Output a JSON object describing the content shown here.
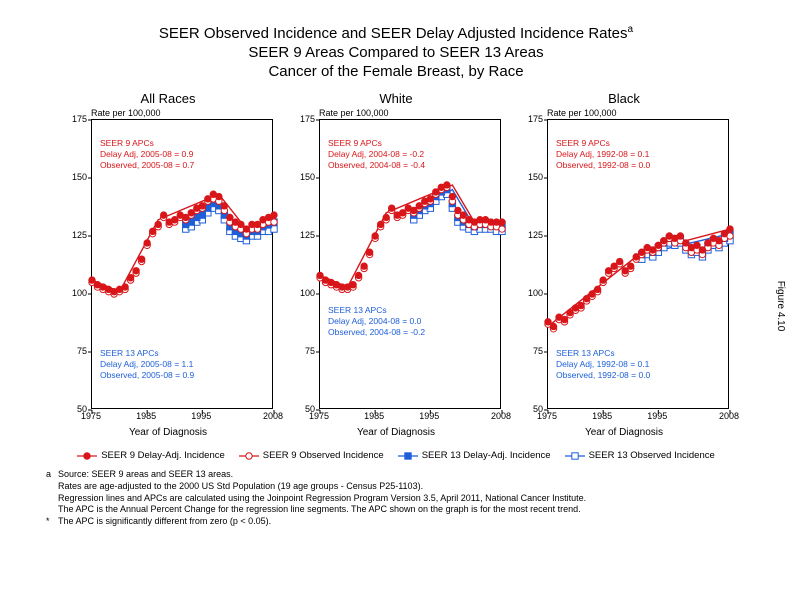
{
  "title": {
    "line1": "SEER Observed Incidence and SEER Delay Adjusted Incidence Rates",
    "sup": "a",
    "line2": "SEER 9 Areas Compared to SEER 13 Areas",
    "line3": "Cancer of the Female Breast, by Race"
  },
  "side_label": "Figure 4.10",
  "axes": {
    "rate_label": "Rate per 100,000",
    "x_label": "Year of Diagnosis",
    "ylim": [
      50,
      175
    ],
    "y_ticks": [
      50,
      75,
      100,
      125,
      150,
      175
    ],
    "xlim": [
      1975,
      2008
    ],
    "x_ticks": [
      1975,
      1985,
      1995,
      2008
    ]
  },
  "colors": {
    "seer9": "#d8161a",
    "seer13": "#1e5fd8",
    "axis": "#000000",
    "bg": "#ffffff"
  },
  "markers": {
    "size": 3.2,
    "delay_fill": true,
    "obs_fill": false,
    "seer9_shape": "circle",
    "seer13_shape": "square"
  },
  "legend": [
    {
      "label": "SEER 9 Delay-Adj. Incidence",
      "color": "#d8161a",
      "shape": "circle",
      "filled": true
    },
    {
      "label": "SEER 9 Observed Incidence",
      "color": "#d8161a",
      "shape": "circle",
      "filled": false
    },
    {
      "label": "SEER 13 Delay-Adj. Incidence",
      "color": "#1e5fd8",
      "shape": "square",
      "filled": true
    },
    {
      "label": "SEER 13 Observed Incidence",
      "color": "#1e5fd8",
      "shape": "square",
      "filled": false
    }
  ],
  "footnotes": {
    "a_marker": "a",
    "a_lines": [
      "Source: SEER 9 areas and SEER 13 areas.",
      "Rates are age-adjusted to the 2000 US Std Population (19 age groups - Census P25-1103).",
      "Regression lines and APCs are calculated using the Joinpoint Regression Program Version 3.5, April 2011, National Cancer Institute.",
      "The APC is the Annual Percent Change for the regression line segments. The APC shown on the graph is for the most recent trend."
    ],
    "star_marker": "*",
    "star_line": "The APC is significantly different from zero (p < 0.05)."
  },
  "panels": [
    {
      "title": "All Races",
      "annot_red": {
        "l1": "SEER 9 APCs",
        "l2": "Delay Adj, 2005-08 = 0.9",
        "l3": "Observed, 2005-08 = 0.7",
        "pos": "top"
      },
      "annot_blue": {
        "l1": "SEER 13 APCs",
        "l2": "Delay Adj, 2005-08 = 1.1",
        "l3": "Observed, 2005-08 = 0.9",
        "pos": "bottom"
      },
      "seer9_delay": [
        106,
        104,
        103,
        102,
        101,
        102,
        103,
        107,
        110,
        115,
        122,
        127,
        130,
        134,
        131,
        132,
        134,
        133,
        135,
        137,
        138,
        141,
        143,
        142,
        138,
        133,
        131,
        130,
        128,
        130,
        130,
        132,
        133,
        134
      ],
      "seer9_obs": [
        105,
        103,
        102,
        101,
        100,
        101,
        102,
        106,
        109,
        114,
        121,
        126,
        129,
        133,
        130,
        131,
        133,
        132,
        134,
        136,
        137,
        140,
        141,
        140,
        136,
        131,
        129,
        128,
        126,
        128,
        128,
        130,
        131,
        131
      ],
      "seer13_delay": [
        null,
        null,
        null,
        null,
        null,
        null,
        null,
        null,
        null,
        null,
        null,
        null,
        null,
        null,
        null,
        null,
        null,
        130,
        131,
        133,
        134,
        137,
        139,
        138,
        134,
        129,
        127,
        126,
        125,
        127,
        127,
        129,
        130,
        131
      ],
      "seer13_obs": [
        null,
        null,
        null,
        null,
        null,
        null,
        null,
        null,
        null,
        null,
        null,
        null,
        null,
        null,
        null,
        null,
        null,
        128,
        129,
        131,
        132,
        135,
        137,
        136,
        132,
        127,
        125,
        124,
        123,
        125,
        125,
        127,
        127,
        128
      ],
      "seer9_line": [
        [
          1975,
          106
        ],
        [
          1980,
          101
        ],
        [
          1987,
          132
        ],
        [
          1998,
          143
        ],
        [
          2003,
          128
        ],
        [
          2008,
          134
        ]
      ],
      "seer13_line": [
        [
          1992,
          130
        ],
        [
          1998,
          139
        ],
        [
          2003,
          125
        ],
        [
          2008,
          131
        ]
      ]
    },
    {
      "title": "White",
      "annot_red": {
        "l1": "SEER 9 APCs",
        "l2": "Delay Adj, 2004-08 = -0.2",
        "l3": "Observed, 2004-08 = -0.4",
        "pos": "top"
      },
      "annot_blue": {
        "l1": "SEER 13 APCs",
        "l2": "Delay Adj, 2004-08 = 0.0",
        "l3": "Observed, 2004-08 = -0.2",
        "pos": "mid"
      },
      "seer9_delay": [
        108,
        106,
        105,
        104,
        103,
        103,
        104,
        108,
        112,
        118,
        125,
        130,
        133,
        137,
        134,
        135,
        137,
        136,
        138,
        140,
        141,
        144,
        146,
        147,
        142,
        136,
        134,
        132,
        131,
        132,
        132,
        131,
        131,
        131
      ],
      "seer9_obs": [
        107,
        105,
        104,
        103,
        102,
        102,
        103,
        107,
        111,
        117,
        124,
        129,
        132,
        136,
        133,
        134,
        136,
        135,
        137,
        139,
        140,
        143,
        145,
        146,
        140,
        134,
        132,
        130,
        129,
        130,
        130,
        129,
        129,
        128
      ],
      "seer13_delay": [
        null,
        null,
        null,
        null,
        null,
        null,
        null,
        null,
        null,
        null,
        null,
        null,
        null,
        null,
        null,
        null,
        null,
        134,
        136,
        138,
        139,
        142,
        144,
        145,
        139,
        133,
        131,
        130,
        129,
        130,
        130,
        130,
        130,
        130
      ],
      "seer13_obs": [
        null,
        null,
        null,
        null,
        null,
        null,
        null,
        null,
        null,
        null,
        null,
        null,
        null,
        null,
        null,
        null,
        null,
        132,
        134,
        136,
        137,
        140,
        142,
        143,
        137,
        131,
        129,
        128,
        127,
        128,
        128,
        128,
        127,
        127
      ],
      "seer9_line": [
        [
          1975,
          108
        ],
        [
          1980,
          103
        ],
        [
          1987,
          135
        ],
        [
          1999,
          147
        ],
        [
          2003,
          131
        ],
        [
          2008,
          131
        ]
      ],
      "seer13_line": [
        [
          1992,
          134
        ],
        [
          1999,
          145
        ],
        [
          2003,
          129
        ],
        [
          2008,
          130
        ]
      ]
    },
    {
      "title": "Black",
      "annot_red": {
        "l1": "SEER 9 APCs",
        "l2": "Delay Adj, 1992-08 = 0.1",
        "l3": "Observed, 1992-08 = 0.0",
        "pos": "top"
      },
      "annot_blue": {
        "l1": "SEER 13 APCs",
        "l2": "Delay Adj, 1992-08 = 0.1",
        "l3": "Observed, 1992-08 = 0.0",
        "pos": "bottom"
      },
      "seer9_delay": [
        88,
        86,
        90,
        89,
        92,
        94,
        95,
        98,
        100,
        102,
        106,
        110,
        112,
        114,
        110,
        112,
        116,
        118,
        120,
        119,
        121,
        123,
        125,
        124,
        125,
        122,
        120,
        121,
        119,
        122,
        124,
        123,
        126,
        128
      ],
      "seer9_obs": [
        87,
        85,
        89,
        88,
        91,
        93,
        94,
        97,
        99,
        101,
        105,
        109,
        111,
        113,
        109,
        111,
        115,
        117,
        119,
        118,
        120,
        122,
        124,
        122,
        123,
        120,
        118,
        119,
        117,
        120,
        122,
        121,
        124,
        125
      ],
      "seer13_delay": [
        null,
        null,
        null,
        null,
        null,
        null,
        null,
        null,
        null,
        null,
        null,
        null,
        null,
        null,
        null,
        null,
        null,
        117,
        119,
        118,
        120,
        122,
        124,
        123,
        124,
        121,
        119,
        120,
        118,
        121,
        123,
        122,
        124,
        126
      ],
      "seer13_obs": [
        null,
        null,
        null,
        null,
        null,
        null,
        null,
        null,
        null,
        null,
        null,
        null,
        null,
        null,
        null,
        null,
        null,
        115,
        117,
        116,
        118,
        120,
        122,
        121,
        122,
        119,
        117,
        118,
        116,
        119,
        121,
        120,
        122,
        123
      ],
      "seer9_line": [
        [
          1975,
          86
        ],
        [
          1992,
          118
        ],
        [
          2008,
          128
        ]
      ],
      "seer13_line": [
        [
          1992,
          117
        ],
        [
          2008,
          126
        ]
      ]
    }
  ]
}
